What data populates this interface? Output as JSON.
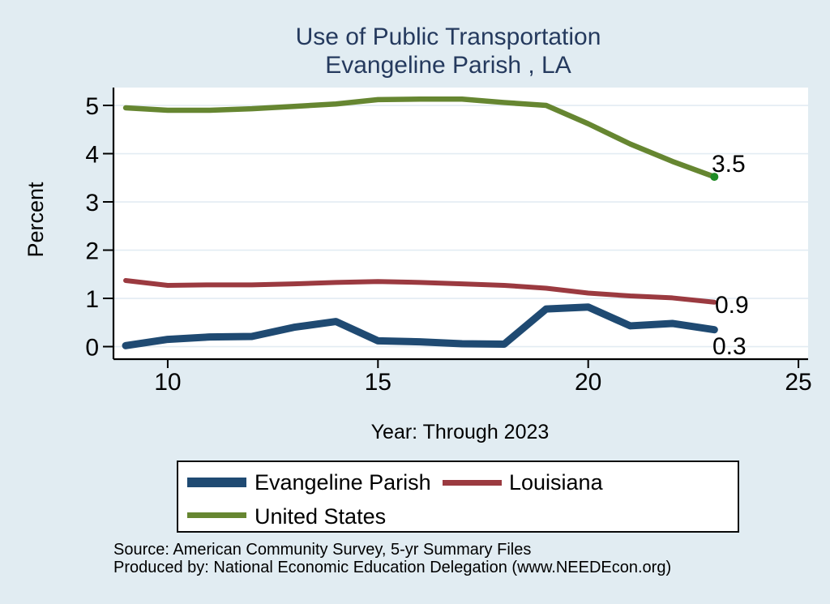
{
  "title": {
    "line1": "Use of Public Transportation",
    "line2": "Evangeline Parish , LA"
  },
  "axis": {
    "y_label": "Percent",
    "x_caption": "Year: Through 2023"
  },
  "chart_data": {
    "type": "line",
    "title": "Use of Public Transportation — Evangeline Parish , LA",
    "xlabel": "Year: Through 2023",
    "ylabel": "Percent",
    "x": [
      9,
      10,
      11,
      12,
      13,
      14,
      15,
      16,
      17,
      18,
      19,
      20,
      21,
      22,
      23
    ],
    "x_ticks": [
      10,
      15,
      20,
      25
    ],
    "y_ticks": [
      0,
      1,
      2,
      3,
      4,
      5
    ],
    "xlim": [
      8.71,
      25.23
    ],
    "ylim": [
      -0.26,
      5.37
    ],
    "grid": "horizontal",
    "legend_position": "bottom",
    "series": [
      {
        "name": "Evangeline Parish",
        "color": "#1f4a72",
        "line_width": 9,
        "values": [
          0.02,
          0.15,
          0.2,
          0.21,
          0.4,
          0.52,
          0.12,
          0.1,
          0.06,
          0.05,
          0.78,
          0.82,
          0.43,
          0.48,
          0.35
        ],
        "end_label": "0.3"
      },
      {
        "name": "Louisiana",
        "color": "#9b3a40",
        "line_width": 6,
        "values": [
          1.37,
          1.27,
          1.28,
          1.28,
          1.3,
          1.33,
          1.35,
          1.33,
          1.3,
          1.27,
          1.21,
          1.11,
          1.05,
          1.01,
          0.92
        ],
        "end_label": "0.9"
      },
      {
        "name": "United States",
        "color": "#668631",
        "line_width": 6.5,
        "values": [
          4.95,
          4.9,
          4.9,
          4.93,
          4.98,
          5.03,
          5.12,
          5.13,
          5.13,
          5.06,
          5.0,
          4.62,
          4.2,
          3.84,
          3.52
        ],
        "end_label": "3.5",
        "end_marker_color": "#1f8b24"
      }
    ]
  },
  "legend": {
    "items": [
      {
        "label": "Evangeline Parish",
        "color": "#1f4a72",
        "thickness": 12
      },
      {
        "label": "Louisiana",
        "color": "#9b3a40",
        "thickness": 7
      },
      {
        "label": "United States",
        "color": "#668631",
        "thickness": 7
      }
    ]
  },
  "source": {
    "line1": "Source: American Community Survey, 5-yr Summary Files",
    "line2": "Produced by: National Economic Education Delegation (www.NEEDEcon.org)"
  },
  "colors": {
    "background": "#e1ecf2",
    "plot_background": "#ffffff",
    "gridline": "#e3ecf3",
    "axis": "#000000",
    "title_text": "#253a5e"
  }
}
